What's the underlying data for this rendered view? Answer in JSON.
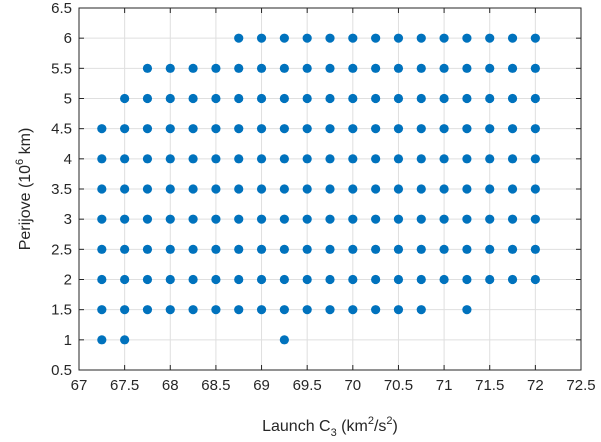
{
  "chart_data": {
    "type": "scatter",
    "xlabel": "Launch C₃ (km²/s²)",
    "xlabel_parts": {
      "base": "Launch C",
      "sub": "3",
      "unit_open": " (km",
      "unit_sup1": "2",
      "unit_mid": "/s",
      "unit_sup2": "2",
      "unit_close": ")"
    },
    "ylabel": "Perijove (10⁶ km)",
    "ylabel_parts": {
      "base": "Perijove (10",
      "sup": "6",
      "rest": " km)"
    },
    "xlim": [
      67,
      72.5
    ],
    "ylim": [
      0.5,
      6.5
    ],
    "x_ticks": [
      "67",
      "67.5",
      "68",
      "68.5",
      "69",
      "69.5",
      "70",
      "70.5",
      "71",
      "71.5",
      "72",
      "72.5"
    ],
    "y_ticks": [
      "0.5",
      "1",
      "1.5",
      "2",
      "2.5",
      "3",
      "3.5",
      "4",
      "4.5",
      "5",
      "5.5",
      "6",
      "6.5"
    ],
    "grid": true,
    "marker_color": "#0072BD",
    "points": [
      [
        67.25,
        1.0
      ],
      [
        67.5,
        1.0
      ],
      [
        69.25,
        1.0
      ],
      [
        67.25,
        1.5
      ],
      [
        67.5,
        1.5
      ],
      [
        67.75,
        1.5
      ],
      [
        68.0,
        1.5
      ],
      [
        68.25,
        1.5
      ],
      [
        68.5,
        1.5
      ],
      [
        68.75,
        1.5
      ],
      [
        69.0,
        1.5
      ],
      [
        69.25,
        1.5
      ],
      [
        69.5,
        1.5
      ],
      [
        69.75,
        1.5
      ],
      [
        70.0,
        1.5
      ],
      [
        70.25,
        1.5
      ],
      [
        70.5,
        1.5
      ],
      [
        70.75,
        1.5
      ],
      [
        71.25,
        1.5
      ],
      [
        67.25,
        2.0
      ],
      [
        67.5,
        2.0
      ],
      [
        67.75,
        2.0
      ],
      [
        68.0,
        2.0
      ],
      [
        68.25,
        2.0
      ],
      [
        68.5,
        2.0
      ],
      [
        68.75,
        2.0
      ],
      [
        69.0,
        2.0
      ],
      [
        69.25,
        2.0
      ],
      [
        69.5,
        2.0
      ],
      [
        69.75,
        2.0
      ],
      [
        70.0,
        2.0
      ],
      [
        70.25,
        2.0
      ],
      [
        70.5,
        2.0
      ],
      [
        70.75,
        2.0
      ],
      [
        71.0,
        2.0
      ],
      [
        71.25,
        2.0
      ],
      [
        71.5,
        2.0
      ],
      [
        71.75,
        2.0
      ],
      [
        72.0,
        2.0
      ],
      [
        67.25,
        2.5
      ],
      [
        67.5,
        2.5
      ],
      [
        67.75,
        2.5
      ],
      [
        68.0,
        2.5
      ],
      [
        68.25,
        2.5
      ],
      [
        68.5,
        2.5
      ],
      [
        68.75,
        2.5
      ],
      [
        69.0,
        2.5
      ],
      [
        69.25,
        2.5
      ],
      [
        69.5,
        2.5
      ],
      [
        69.75,
        2.5
      ],
      [
        70.0,
        2.5
      ],
      [
        70.25,
        2.5
      ],
      [
        70.5,
        2.5
      ],
      [
        70.75,
        2.5
      ],
      [
        71.0,
        2.5
      ],
      [
        71.25,
        2.5
      ],
      [
        71.5,
        2.5
      ],
      [
        71.75,
        2.5
      ],
      [
        72.0,
        2.5
      ],
      [
        67.25,
        3.0
      ],
      [
        67.5,
        3.0
      ],
      [
        67.75,
        3.0
      ],
      [
        68.0,
        3.0
      ],
      [
        68.25,
        3.0
      ],
      [
        68.5,
        3.0
      ],
      [
        68.75,
        3.0
      ],
      [
        69.0,
        3.0
      ],
      [
        69.25,
        3.0
      ],
      [
        69.5,
        3.0
      ],
      [
        69.75,
        3.0
      ],
      [
        70.0,
        3.0
      ],
      [
        70.25,
        3.0
      ],
      [
        70.5,
        3.0
      ],
      [
        70.75,
        3.0
      ],
      [
        71.0,
        3.0
      ],
      [
        71.25,
        3.0
      ],
      [
        71.5,
        3.0
      ],
      [
        71.75,
        3.0
      ],
      [
        72.0,
        3.0
      ],
      [
        67.25,
        3.5
      ],
      [
        67.5,
        3.5
      ],
      [
        67.75,
        3.5
      ],
      [
        68.0,
        3.5
      ],
      [
        68.25,
        3.5
      ],
      [
        68.5,
        3.5
      ],
      [
        68.75,
        3.5
      ],
      [
        69.0,
        3.5
      ],
      [
        69.25,
        3.5
      ],
      [
        69.5,
        3.5
      ],
      [
        69.75,
        3.5
      ],
      [
        70.0,
        3.5
      ],
      [
        70.25,
        3.5
      ],
      [
        70.5,
        3.5
      ],
      [
        70.75,
        3.5
      ],
      [
        71.0,
        3.5
      ],
      [
        71.25,
        3.5
      ],
      [
        71.5,
        3.5
      ],
      [
        71.75,
        3.5
      ],
      [
        72.0,
        3.5
      ],
      [
        67.25,
        4.0
      ],
      [
        67.5,
        4.0
      ],
      [
        67.75,
        4.0
      ],
      [
        68.0,
        4.0
      ],
      [
        68.25,
        4.0
      ],
      [
        68.5,
        4.0
      ],
      [
        68.75,
        4.0
      ],
      [
        69.0,
        4.0
      ],
      [
        69.25,
        4.0
      ],
      [
        69.5,
        4.0
      ],
      [
        69.75,
        4.0
      ],
      [
        70.0,
        4.0
      ],
      [
        70.25,
        4.0
      ],
      [
        70.5,
        4.0
      ],
      [
        70.75,
        4.0
      ],
      [
        71.0,
        4.0
      ],
      [
        71.25,
        4.0
      ],
      [
        71.5,
        4.0
      ],
      [
        71.75,
        4.0
      ],
      [
        72.0,
        4.0
      ],
      [
        67.25,
        4.5
      ],
      [
        67.5,
        4.5
      ],
      [
        67.75,
        4.5
      ],
      [
        68.0,
        4.5
      ],
      [
        68.25,
        4.5
      ],
      [
        68.5,
        4.5
      ],
      [
        68.75,
        4.5
      ],
      [
        69.0,
        4.5
      ],
      [
        69.25,
        4.5
      ],
      [
        69.5,
        4.5
      ],
      [
        69.75,
        4.5
      ],
      [
        70.0,
        4.5
      ],
      [
        70.25,
        4.5
      ],
      [
        70.5,
        4.5
      ],
      [
        70.75,
        4.5
      ],
      [
        71.0,
        4.5
      ],
      [
        71.25,
        4.5
      ],
      [
        71.5,
        4.5
      ],
      [
        71.75,
        4.5
      ],
      [
        72.0,
        4.5
      ],
      [
        67.5,
        5.0
      ],
      [
        67.75,
        5.0
      ],
      [
        68.0,
        5.0
      ],
      [
        68.25,
        5.0
      ],
      [
        68.5,
        5.0
      ],
      [
        68.75,
        5.0
      ],
      [
        69.0,
        5.0
      ],
      [
        69.25,
        5.0
      ],
      [
        69.5,
        5.0
      ],
      [
        69.75,
        5.0
      ],
      [
        70.0,
        5.0
      ],
      [
        70.25,
        5.0
      ],
      [
        70.5,
        5.0
      ],
      [
        70.75,
        5.0
      ],
      [
        71.0,
        5.0
      ],
      [
        71.25,
        5.0
      ],
      [
        71.5,
        5.0
      ],
      [
        71.75,
        5.0
      ],
      [
        72.0,
        5.0
      ],
      [
        67.75,
        5.5
      ],
      [
        68.0,
        5.5
      ],
      [
        68.25,
        5.5
      ],
      [
        68.5,
        5.5
      ],
      [
        68.75,
        5.5
      ],
      [
        69.0,
        5.5
      ],
      [
        69.25,
        5.5
      ],
      [
        69.5,
        5.5
      ],
      [
        69.75,
        5.5
      ],
      [
        70.0,
        5.5
      ],
      [
        70.25,
        5.5
      ],
      [
        70.5,
        5.5
      ],
      [
        70.75,
        5.5
      ],
      [
        71.0,
        5.5
      ],
      [
        71.25,
        5.5
      ],
      [
        71.5,
        5.5
      ],
      [
        71.75,
        5.5
      ],
      [
        72.0,
        5.5
      ],
      [
        68.75,
        6.0
      ],
      [
        69.0,
        6.0
      ],
      [
        69.25,
        6.0
      ],
      [
        69.5,
        6.0
      ],
      [
        69.75,
        6.0
      ],
      [
        70.0,
        6.0
      ],
      [
        70.25,
        6.0
      ],
      [
        70.5,
        6.0
      ],
      [
        70.75,
        6.0
      ],
      [
        71.0,
        6.0
      ],
      [
        71.25,
        6.0
      ],
      [
        71.5,
        6.0
      ],
      [
        71.75,
        6.0
      ],
      [
        72.0,
        6.0
      ]
    ]
  }
}
